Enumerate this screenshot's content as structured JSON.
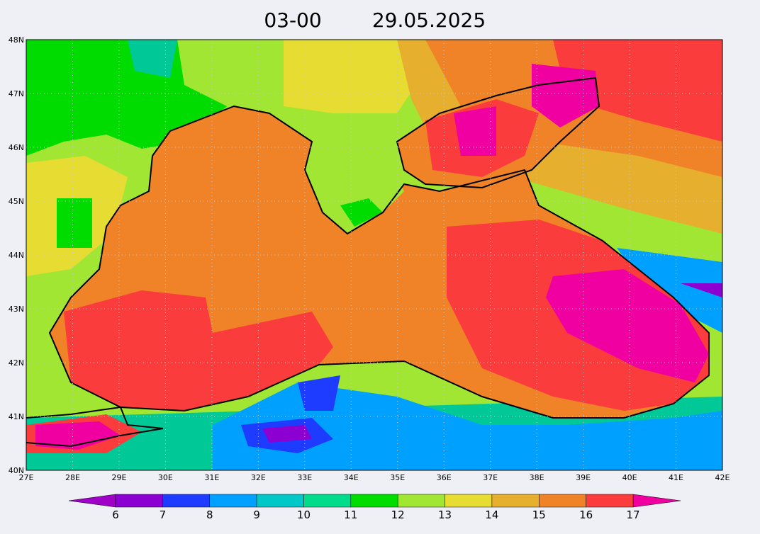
{
  "title": {
    "time": "03-00",
    "date": "29.05.2025"
  },
  "lat_labels": [
    "48N",
    "47N",
    "46N",
    "45N",
    "44N",
    "43N",
    "42N",
    "41N",
    "40N"
  ],
  "lon_labels": [
    "27E",
    "28E",
    "29E",
    "30E",
    "31E",
    "32E",
    "33E",
    "34E",
    "35E",
    "36E",
    "37E",
    "38E",
    "39E",
    "40E",
    "41E",
    "42E"
  ],
  "colorbar": {
    "labels": [
      6,
      7,
      8,
      9,
      10,
      11,
      12,
      13,
      14,
      15,
      16,
      17
    ]
  }
}
